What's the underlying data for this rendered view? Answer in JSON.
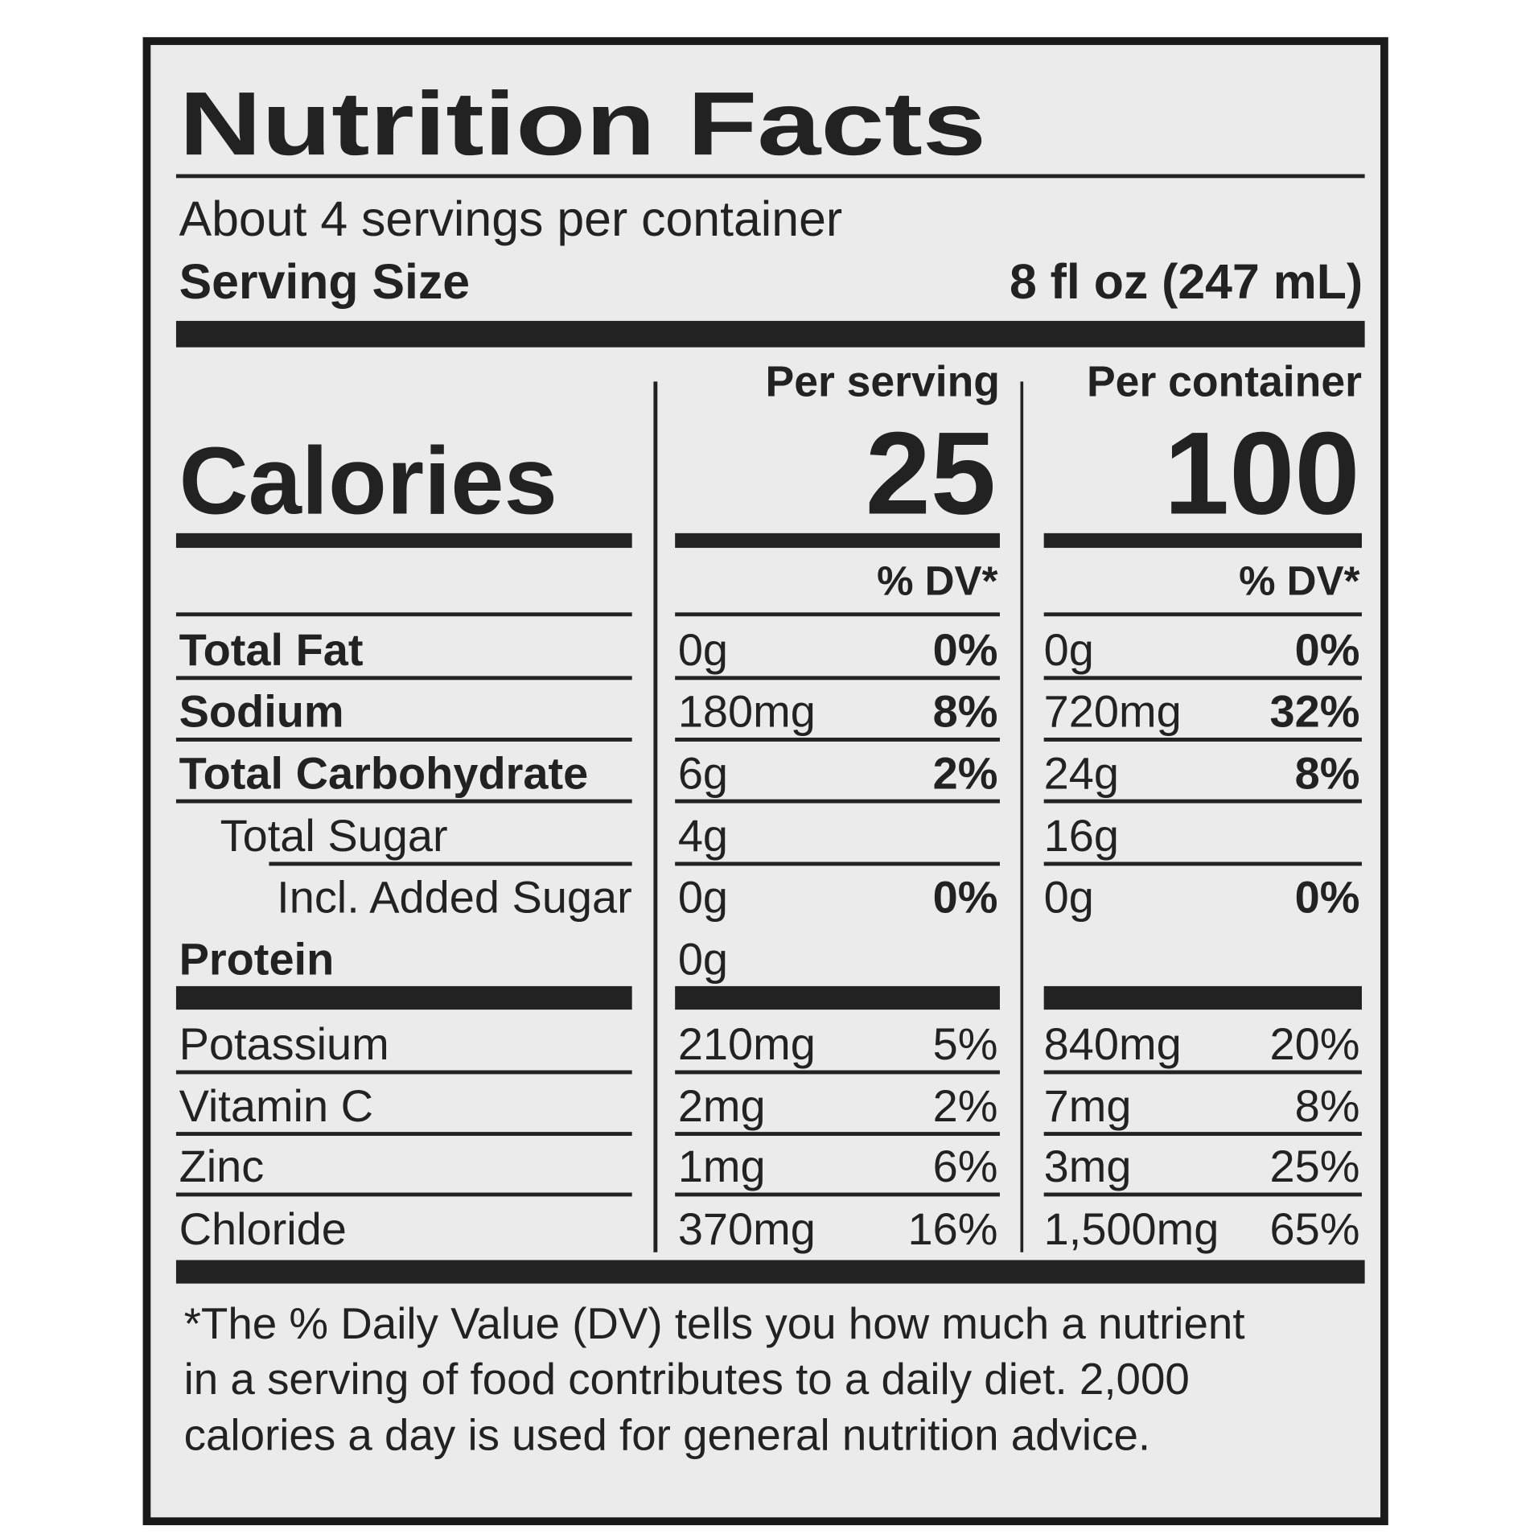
{
  "header": {
    "title": "Nutrition Facts",
    "servings": "About 4 servings per container",
    "serving_size_label": "Serving Size",
    "serving_size": "8 fl oz (247 mL)"
  },
  "columns": {
    "per_serving": "Per serving",
    "per_container": "Per container"
  },
  "calories": {
    "label": "Calories",
    "per_serving": "25",
    "per_container": "100"
  },
  "dv_header": [
    "% DV*",
    "% DV*"
  ],
  "rows": [
    {
      "name": "Total Fat",
      "serving_amount": "0g",
      "serving_dv": "0%",
      "container_amount": "0g",
      "container_dv": "0%"
    },
    {
      "name": "Sodium",
      "serving_amount": "180mg",
      "serving_dv": "8%",
      "container_amount": "720mg",
      "container_dv": "32%"
    },
    {
      "name": "Total Carbohydrate",
      "serving_amount": "6g",
      "serving_dv": "2%",
      "container_amount": "24g",
      "container_dv": "8%"
    },
    {
      "name": "Total Sugar",
      "serving_amount": "4g",
      "container_amount": "16g"
    },
    {
      "name": "Incl. Added Sugar",
      "serving_amount": "0g",
      "serving_dv": "0%",
      "container_amount": "0g",
      "container_dv": "0%"
    },
    {
      "name": "Protein",
      "serving_amount": "0g"
    },
    {
      "name": "Potassium",
      "serving_amount": "210mg",
      "serving_dv": "5%",
      "container_amount": "840mg",
      "container_dv": "20%"
    },
    {
      "name": "Vitamin C",
      "serving_amount": "2mg",
      "serving_dv": "2%",
      "container_amount": "7mg",
      "container_dv": "8%"
    },
    {
      "name": "Zinc",
      "serving_amount": "1mg",
      "serving_dv": "6%",
      "container_amount": "3mg",
      "container_dv": "25%"
    },
    {
      "name": "Chloride",
      "serving_amount": "370mg",
      "serving_dv": "16%",
      "container_amount": "1,500mg",
      "container_dv": "65%"
    }
  ],
  "footnote": [
    "*The % Daily Value (DV) tells you how much a nutrient",
    "in a serving of food contributes to a daily diet. 2,000",
    "calories a day is used for general nutrition advice."
  ]
}
